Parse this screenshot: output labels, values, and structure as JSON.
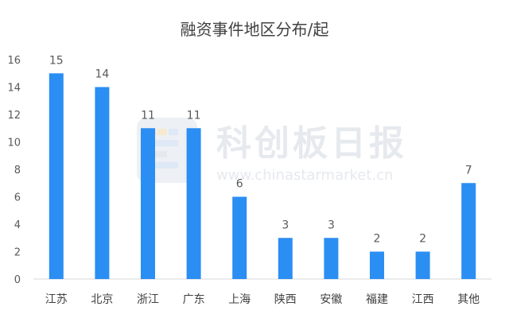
{
  "chart_data": {
    "type": "bar",
    "title": "融资事件地区分布/起",
    "categories": [
      "江苏",
      "北京",
      "浙江",
      "广东",
      "上海",
      "陕西",
      "安徽",
      "福建",
      "江西",
      "其他"
    ],
    "values": [
      15,
      14,
      11,
      11,
      6,
      3,
      3,
      2,
      2,
      7
    ],
    "ylim": [
      0,
      16
    ],
    "yticks": [
      0,
      2,
      4,
      6,
      8,
      10,
      12,
      14,
      16
    ],
    "grid": false,
    "data_labels": true,
    "bar_color": "#2b8ef3",
    "xlabel": "",
    "ylabel": ""
  },
  "watermark": {
    "brand": "科创板日报",
    "url": "www.chinastarmarket.cn"
  }
}
